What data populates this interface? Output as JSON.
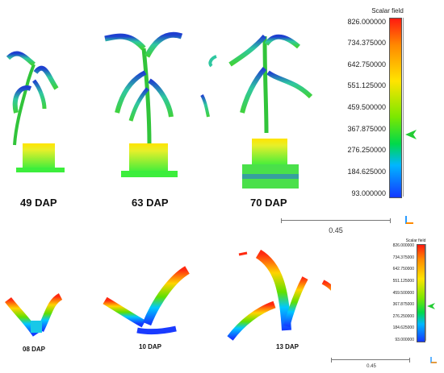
{
  "top_panel": {
    "labels": [
      "49 DAP",
      "63 DAP",
      "70 DAP"
    ],
    "colorbar": {
      "title": "Scalar field",
      "ticks": [
        "826.000000",
        "734.375000",
        "642.750000",
        "551.125000",
        "459.500000",
        "367.875000",
        "276.250000",
        "184.625000",
        "93.000000"
      ]
    },
    "scale_label": "0.45"
  },
  "bottom_panel": {
    "labels": [
      "08 DAP",
      "10 DAP",
      "13 DAP"
    ],
    "colorbar": {
      "title": "Scalar field",
      "ticks": [
        "826.000000",
        "734.375000",
        "642.750000",
        "551.125000",
        "459.500000",
        "367.875000",
        "276.250000",
        "184.625000",
        "93.000000"
      ]
    },
    "scale_label": "0.45"
  },
  "colors": {
    "pot_yellow": "#e8ee2a",
    "pot_green": "#33ee33",
    "leaf_green": "#3fd23a",
    "leaf_blue": "#1e3fd0",
    "marker_green": "#22cc33"
  }
}
